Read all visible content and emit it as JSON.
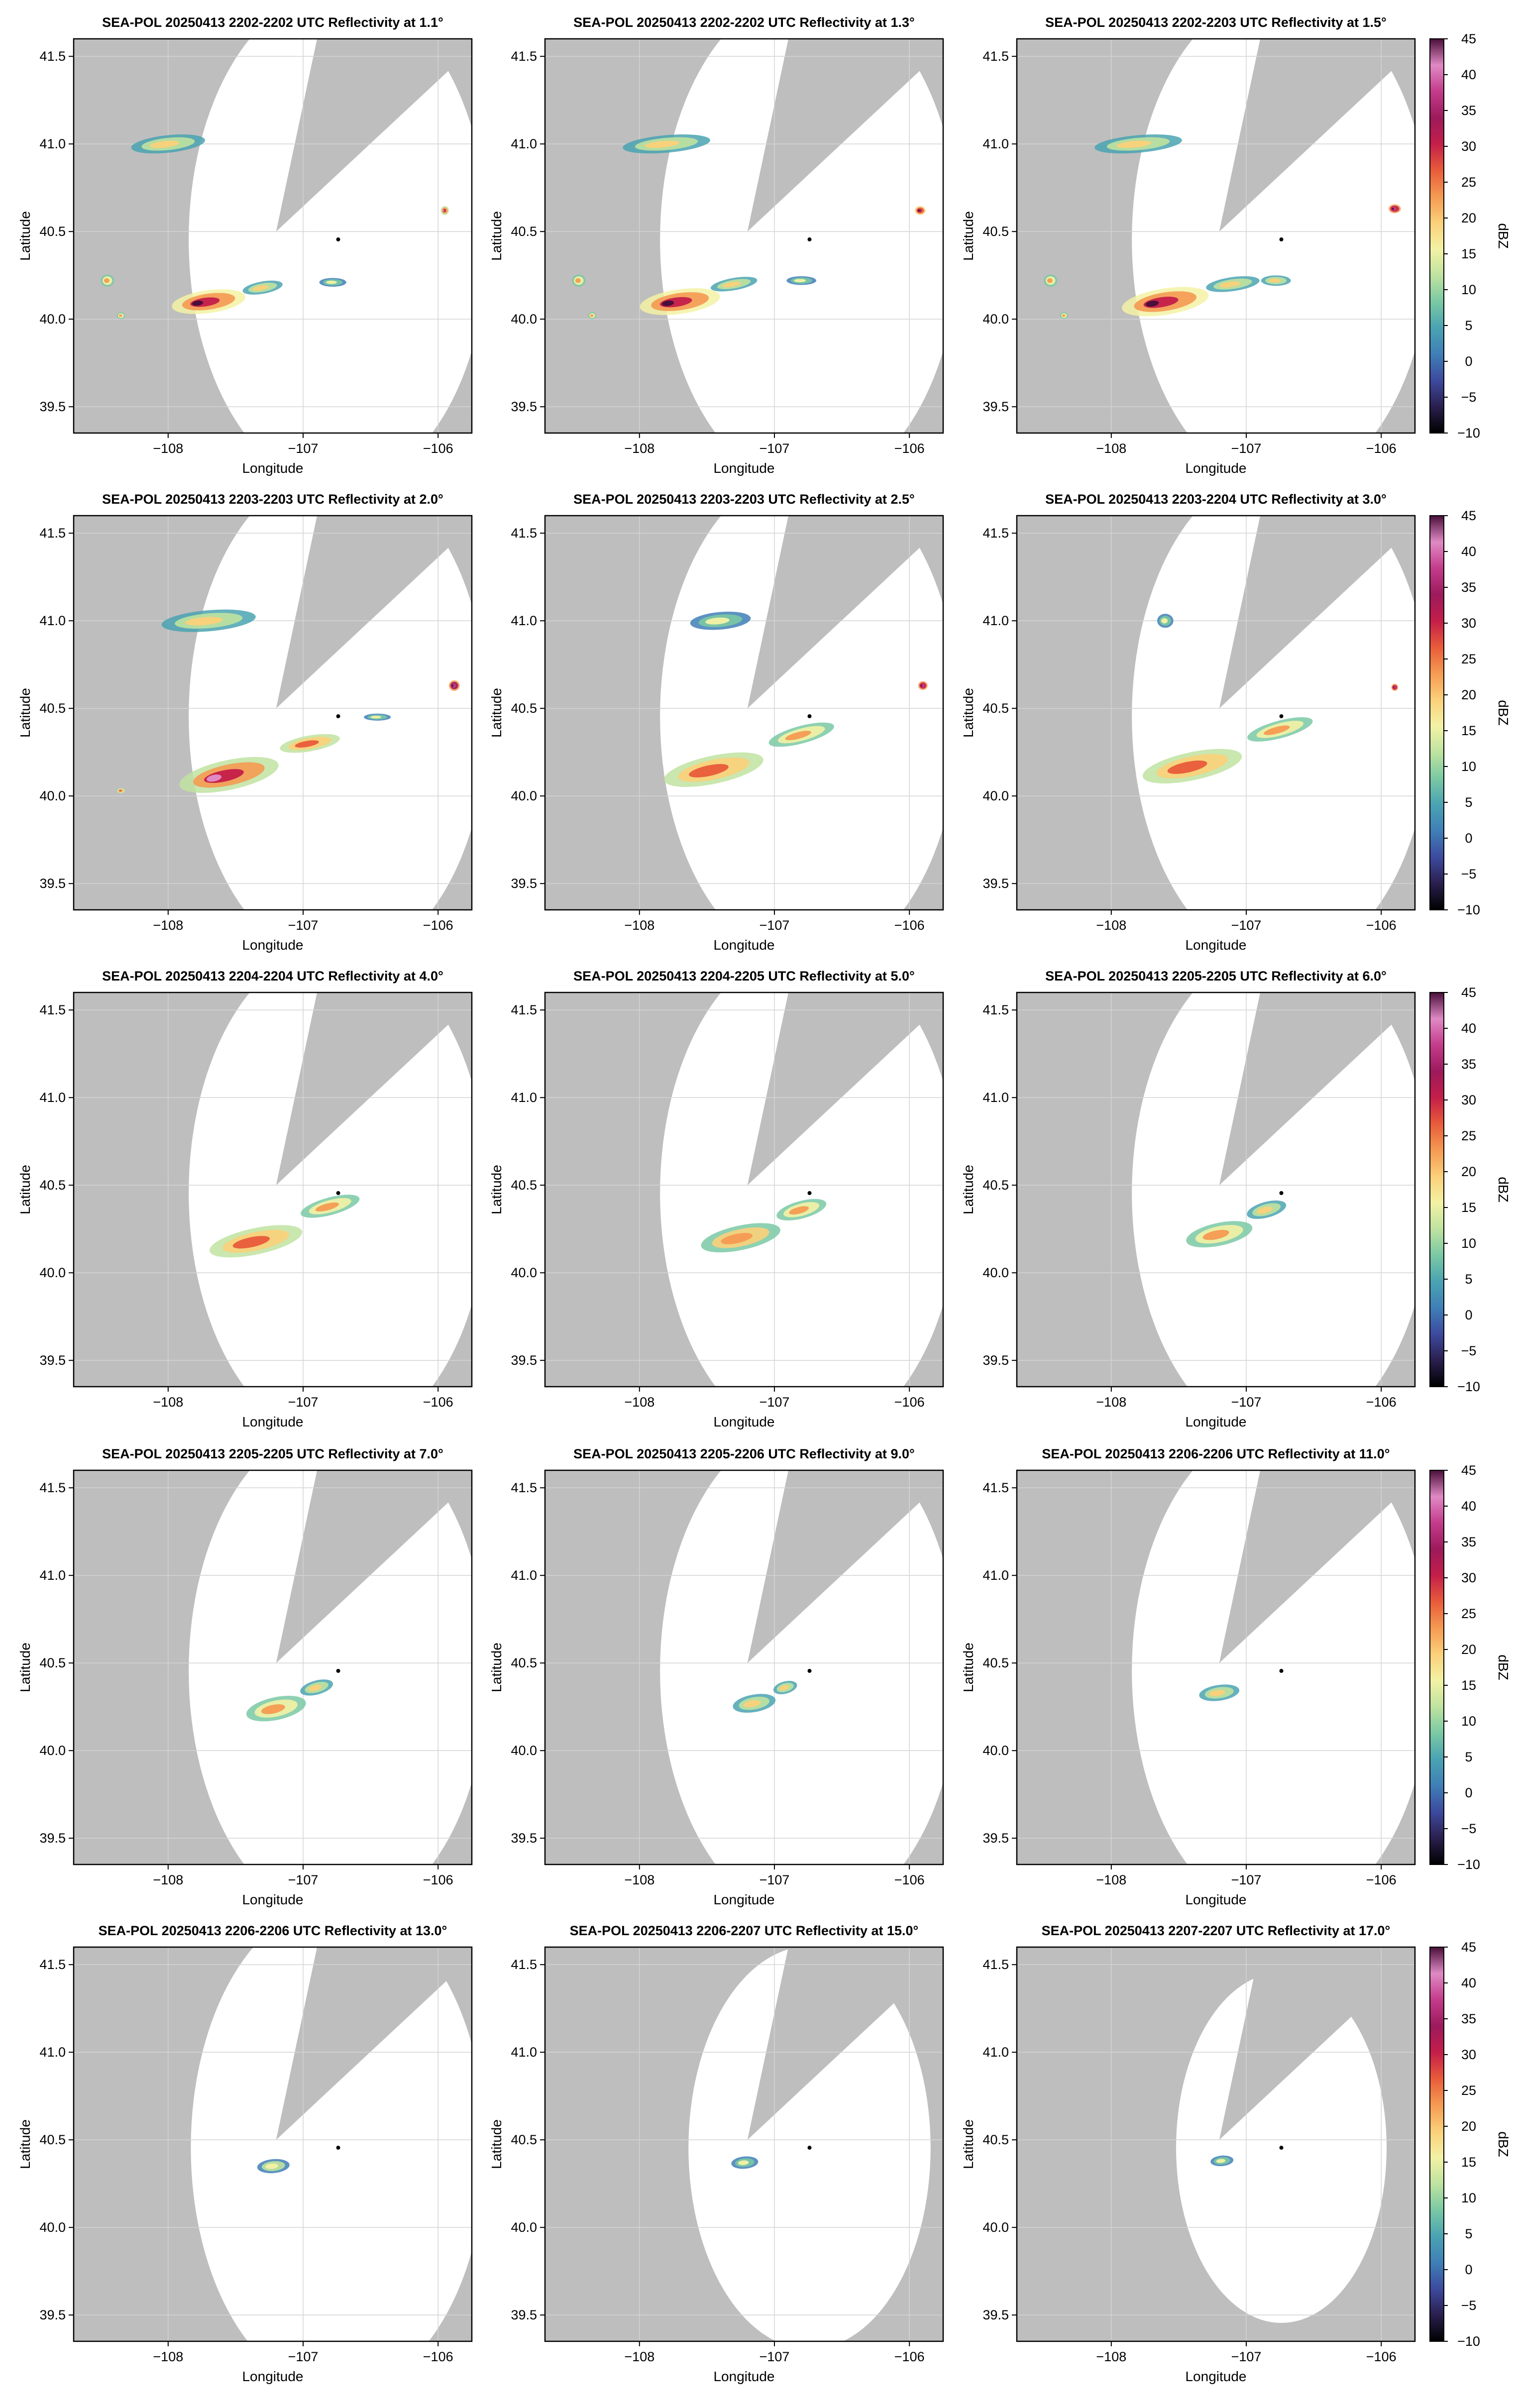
{
  "figure": {
    "xlabel": "Longitude",
    "ylabel": "Latitude",
    "colorbar_label": "dBZ"
  },
  "chart_data": {
    "type": "heatmap",
    "layout": {
      "rows": 5,
      "cols": 3
    },
    "xlim": [
      -108.7,
      -105.75
    ],
    "ylim": [
      39.35,
      41.6
    ],
    "xticks": [
      -108,
      -107,
      -106
    ],
    "xtick_labels": [
      "−108",
      "−107",
      "−106"
    ],
    "yticks": [
      39.5,
      40.0,
      40.5,
      41.0,
      41.5
    ],
    "ytick_labels": [
      "39.5",
      "40.0",
      "40.5",
      "41.0",
      "41.5"
    ],
    "grid": true,
    "radar_location": {
      "lon": -106.74,
      "lat": 40.455
    },
    "blocked_sector": {
      "apex_lon": -107.2,
      "apex_lat": 40.5
    },
    "colorbar": {
      "min": -10,
      "max": 45,
      "ticks": [
        -10,
        -5,
        0,
        5,
        10,
        15,
        20,
        25,
        30,
        35,
        40,
        45
      ],
      "tick_labels": [
        "−10",
        "−5",
        "0",
        "5",
        "10",
        "15",
        "20",
        "25",
        "30",
        "35",
        "40",
        "45"
      ],
      "label": "dBZ",
      "colors": [
        "#000000",
        "#2a1f4e",
        "#3d4a9e",
        "#3f7fb7",
        "#4aa3b2",
        "#7ac9a4",
        "#bfe3a0",
        "#f3f2a4",
        "#fbd07a",
        "#f59a52",
        "#e85b3a",
        "#c41e4a",
        "#9c1a5c",
        "#c43c8c",
        "#e08ac4",
        "#4a0f3a"
      ]
    },
    "panels": [
      {
        "title": "SEA-POL 20250413 2202-2202 UTC Reflectivity at 1.1°",
        "elevation_deg": 1.1,
        "range_deg": 1.42,
        "echoes": [
          {
            "lon": -107.7,
            "lat": 40.1,
            "w": 0.55,
            "h": 0.13,
            "dbz": 30,
            "tilt": -8
          },
          {
            "lon": -107.3,
            "lat": 40.18,
            "w": 0.3,
            "h": 0.07,
            "dbz": 18,
            "tilt": -10
          },
          {
            "lon": -106.78,
            "lat": 40.21,
            "w": 0.2,
            "h": 0.05,
            "dbz": 15,
            "tilt": 0
          },
          {
            "lon": -108.0,
            "lat": 41.0,
            "w": 0.55,
            "h": 0.1,
            "dbz": 20,
            "tilt": -6
          },
          {
            "lon": -108.45,
            "lat": 40.22,
            "w": 0.1,
            "h": 0.07,
            "dbz": 22,
            "tilt": 0
          },
          {
            "lon": -105.95,
            "lat": 40.62,
            "w": 0.06,
            "h": 0.05,
            "dbz": 28,
            "tilt": 0
          },
          {
            "lon": -108.35,
            "lat": 40.02,
            "w": 0.06,
            "h": 0.04,
            "dbz": 22,
            "tilt": 0
          }
        ]
      },
      {
        "title": "SEA-POL 20250413 2202-2202 UTC Reflectivity at 1.3°",
        "elevation_deg": 1.3,
        "range_deg": 1.42,
        "echoes": [
          {
            "lon": -107.7,
            "lat": 40.1,
            "w": 0.6,
            "h": 0.14,
            "dbz": 30,
            "tilt": -8
          },
          {
            "lon": -107.3,
            "lat": 40.2,
            "w": 0.35,
            "h": 0.07,
            "dbz": 18,
            "tilt": -10
          },
          {
            "lon": -106.8,
            "lat": 40.22,
            "w": 0.22,
            "h": 0.05,
            "dbz": 15,
            "tilt": 0
          },
          {
            "lon": -107.8,
            "lat": 41.0,
            "w": 0.65,
            "h": 0.1,
            "dbz": 20,
            "tilt": -5
          },
          {
            "lon": -108.45,
            "lat": 40.22,
            "w": 0.1,
            "h": 0.07,
            "dbz": 22,
            "tilt": 0
          },
          {
            "lon": -105.92,
            "lat": 40.62,
            "w": 0.08,
            "h": 0.05,
            "dbz": 32,
            "tilt": 0
          },
          {
            "lon": -108.35,
            "lat": 40.02,
            "w": 0.06,
            "h": 0.04,
            "dbz": 22,
            "tilt": 0
          }
        ]
      },
      {
        "title": "SEA-POL 20250413 2202-2203 UTC Reflectivity at 1.5°",
        "elevation_deg": 1.5,
        "range_deg": 1.42,
        "echoes": [
          {
            "lon": -107.6,
            "lat": 40.1,
            "w": 0.65,
            "h": 0.15,
            "dbz": 30,
            "tilt": -9
          },
          {
            "lon": -107.1,
            "lat": 40.2,
            "w": 0.4,
            "h": 0.08,
            "dbz": 20,
            "tilt": -8
          },
          {
            "lon": -106.78,
            "lat": 40.22,
            "w": 0.22,
            "h": 0.06,
            "dbz": 20,
            "tilt": 0
          },
          {
            "lon": -107.8,
            "lat": 41.0,
            "w": 0.65,
            "h": 0.1,
            "dbz": 20,
            "tilt": -5
          },
          {
            "lon": -108.45,
            "lat": 40.22,
            "w": 0.1,
            "h": 0.07,
            "dbz": 22,
            "tilt": 0
          },
          {
            "lon": -105.9,
            "lat": 40.63,
            "w": 0.09,
            "h": 0.05,
            "dbz": 35,
            "tilt": 0
          },
          {
            "lon": -108.35,
            "lat": 40.02,
            "w": 0.06,
            "h": 0.04,
            "dbz": 22,
            "tilt": 0
          }
        ]
      },
      {
        "title": "SEA-POL 20250413 2203-2203 UTC Reflectivity at 2.0°",
        "elevation_deg": 2.0,
        "range_deg": 1.42,
        "echoes": [
          {
            "lon": -107.55,
            "lat": 40.12,
            "w": 0.75,
            "h": 0.17,
            "dbz": 28,
            "tilt": -12
          },
          {
            "lon": -106.95,
            "lat": 40.3,
            "w": 0.45,
            "h": 0.09,
            "dbz": 25,
            "tilt": -10
          },
          {
            "lon": -106.45,
            "lat": 40.45,
            "w": 0.2,
            "h": 0.04,
            "dbz": 15,
            "tilt": 0
          },
          {
            "lon": -107.7,
            "lat": 41.0,
            "w": 0.7,
            "h": 0.12,
            "dbz": 20,
            "tilt": -5
          },
          {
            "lon": -105.88,
            "lat": 40.63,
            "w": 0.08,
            "h": 0.06,
            "dbz": 38,
            "tilt": 0
          },
          {
            "lon": -108.35,
            "lat": 40.03,
            "w": 0.06,
            "h": 0.03,
            "dbz": 25,
            "tilt": 0
          }
        ]
      },
      {
        "title": "SEA-POL 20250413 2203-2203 UTC Reflectivity at 2.5°",
        "elevation_deg": 2.5,
        "range_deg": 1.42,
        "echoes": [
          {
            "lon": -107.45,
            "lat": 40.15,
            "w": 0.75,
            "h": 0.16,
            "dbz": 26,
            "tilt": -12
          },
          {
            "lon": -106.8,
            "lat": 40.35,
            "w": 0.5,
            "h": 0.1,
            "dbz": 22,
            "tilt": -15
          },
          {
            "lon": -107.4,
            "lat": 41.0,
            "w": 0.45,
            "h": 0.1,
            "dbz": 15,
            "tilt": -5
          },
          {
            "lon": -105.9,
            "lat": 40.63,
            "w": 0.07,
            "h": 0.05,
            "dbz": 35,
            "tilt": 0
          }
        ]
      },
      {
        "title": "SEA-POL 20250413 2203-2204 UTC Reflectivity at 3.0°",
        "elevation_deg": 3.0,
        "range_deg": 1.42,
        "echoes": [
          {
            "lon": -107.4,
            "lat": 40.17,
            "w": 0.75,
            "h": 0.16,
            "dbz": 26,
            "tilt": -12
          },
          {
            "lon": -106.75,
            "lat": 40.38,
            "w": 0.5,
            "h": 0.1,
            "dbz": 22,
            "tilt": -15
          },
          {
            "lon": -107.6,
            "lat": 41.0,
            "w": 0.12,
            "h": 0.08,
            "dbz": 15,
            "tilt": 0
          },
          {
            "lon": -105.9,
            "lat": 40.62,
            "w": 0.05,
            "h": 0.04,
            "dbz": 35,
            "tilt": 0
          }
        ]
      },
      {
        "title": "SEA-POL 20250413 2204-2204 UTC Reflectivity at 4.0°",
        "elevation_deg": 4.0,
        "range_deg": 1.42,
        "echoes": [
          {
            "lon": -107.35,
            "lat": 40.18,
            "w": 0.7,
            "h": 0.15,
            "dbz": 25,
            "tilt": -12
          },
          {
            "lon": -106.8,
            "lat": 40.38,
            "w": 0.45,
            "h": 0.1,
            "dbz": 22,
            "tilt": -15
          }
        ]
      },
      {
        "title": "SEA-POL 20250413 2204-2205 UTC Reflectivity at 5.0°",
        "elevation_deg": 5.0,
        "range_deg": 1.42,
        "echoes": [
          {
            "lon": -107.25,
            "lat": 40.2,
            "w": 0.6,
            "h": 0.14,
            "dbz": 24,
            "tilt": -12
          },
          {
            "lon": -106.8,
            "lat": 40.36,
            "w": 0.38,
            "h": 0.1,
            "dbz": 22,
            "tilt": -15
          }
        ]
      },
      {
        "title": "SEA-POL 20250413 2205-2205 UTC Reflectivity at 6.0°",
        "elevation_deg": 6.0,
        "range_deg": 1.42,
        "echoes": [
          {
            "lon": -107.2,
            "lat": 40.22,
            "w": 0.5,
            "h": 0.13,
            "dbz": 22,
            "tilt": -12
          },
          {
            "lon": -106.85,
            "lat": 40.36,
            "w": 0.3,
            "h": 0.09,
            "dbz": 20,
            "tilt": -15
          }
        ]
      },
      {
        "title": "SEA-POL 20250413 2205-2205 UTC Reflectivity at 7.0°",
        "elevation_deg": 7.0,
        "range_deg": 1.42,
        "echoes": [
          {
            "lon": -107.2,
            "lat": 40.24,
            "w": 0.45,
            "h": 0.13,
            "dbz": 22,
            "tilt": -12
          },
          {
            "lon": -106.9,
            "lat": 40.36,
            "w": 0.25,
            "h": 0.08,
            "dbz": 20,
            "tilt": -15
          }
        ]
      },
      {
        "title": "SEA-POL 20250413 2205-2206 UTC Reflectivity at 9.0°",
        "elevation_deg": 9.0,
        "range_deg": 1.42,
        "echoes": [
          {
            "lon": -107.15,
            "lat": 40.27,
            "w": 0.32,
            "h": 0.1,
            "dbz": 20,
            "tilt": -10
          },
          {
            "lon": -106.92,
            "lat": 40.36,
            "w": 0.18,
            "h": 0.07,
            "dbz": 18,
            "tilt": -15
          }
        ]
      },
      {
        "title": "SEA-POL 20250413 2206-2206 UTC Reflectivity at 11.0°",
        "elevation_deg": 11.0,
        "range_deg": 1.42,
        "echoes": [
          {
            "lon": -107.2,
            "lat": 40.33,
            "w": 0.3,
            "h": 0.09,
            "dbz": 18,
            "tilt": -8
          }
        ]
      },
      {
        "title": "SEA-POL 20250413 2206-2206 UTC Reflectivity at 13.0°",
        "elevation_deg": 13.0,
        "range_deg": 1.4,
        "echoes": [
          {
            "lon": -107.22,
            "lat": 40.35,
            "w": 0.24,
            "h": 0.08,
            "dbz": 17,
            "tilt": -5
          }
        ]
      },
      {
        "title": "SEA-POL 20250413 2206-2207 UTC Reflectivity at 15.0°",
        "elevation_deg": 15.0,
        "range_deg": 1.15,
        "echoes": [
          {
            "lon": -107.22,
            "lat": 40.37,
            "w": 0.2,
            "h": 0.07,
            "dbz": 16,
            "tilt": -5
          }
        ]
      },
      {
        "title": "SEA-POL 20250413 2207-2207 UTC Reflectivity at 17.0°",
        "elevation_deg": 17.0,
        "range_deg": 1.0,
        "echoes": [
          {
            "lon": -107.18,
            "lat": 40.38,
            "w": 0.17,
            "h": 0.06,
            "dbz": 15,
            "tilt": -5
          }
        ]
      }
    ]
  }
}
